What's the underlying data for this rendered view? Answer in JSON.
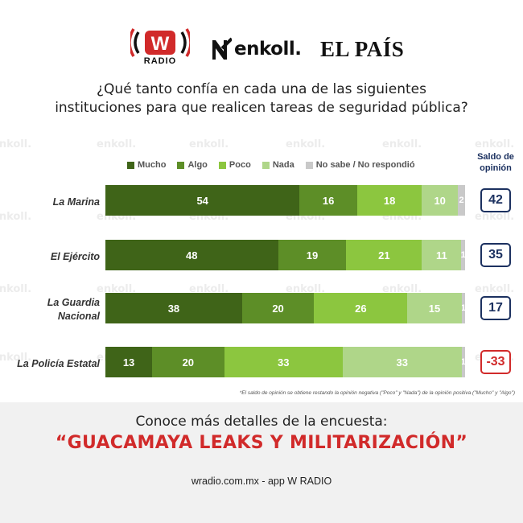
{
  "header": {
    "wradio_logo_letter": "W",
    "wradio_logo_text": "RADIO",
    "enkoll_logo_text": "enkoll.",
    "elpais_logo_text": "EL PAÍS"
  },
  "question": {
    "line1": "¿Qué tanto confía en cada una de las siguientes",
    "line2": "instituciones para que realicen tareas de seguridad pública?"
  },
  "watermark_text": "enkoll.",
  "chart_data": {
    "type": "bar",
    "orientation": "horizontal",
    "stacked": true,
    "categories": [
      "La Marina",
      "El Ejército",
      "La Guardia Nacional",
      "La Policía Estatal"
    ],
    "series": [
      {
        "name": "Mucho",
        "color": "#3f6418",
        "values": [
          54,
          48,
          38,
          13
        ]
      },
      {
        "name": "Algo",
        "color": "#5d8e27",
        "values": [
          16,
          19,
          20,
          20
        ]
      },
      {
        "name": "Poco",
        "color": "#8cc63f",
        "values": [
          18,
          21,
          26,
          33
        ]
      },
      {
        "name": "Nada",
        "color": "#afd689",
        "values": [
          10,
          11,
          15,
          33
        ]
      },
      {
        "name": "No sabe / No respondió",
        "color": "#c9c9c9",
        "values": [
          2,
          1,
          1,
          1
        ]
      }
    ],
    "saldo_title_line1": "Saldo de",
    "saldo_title_line2": "opinión",
    "saldo": [
      "42",
      "35",
      "17",
      "-33"
    ],
    "saldo_colors": [
      "#1c3160",
      "#1c3160",
      "#1c3160",
      "#d12a2a"
    ],
    "footnote": "*El saldo de opinión se obtiene restando la opinión negativa (\"Poco\" y \"Nada\") de la opinión positiva (\"Mucho\" y \"Algo\")",
    "legend_position": "top",
    "xlim": [
      0,
      100
    ],
    "grid": false
  },
  "banner": {
    "line1": "Conoce más detalles de la encuesta:",
    "line2": "“GUACAMAYA LEAKS Y MILITARIZACIÓN”",
    "line3": "wradio.com.mx - app W RADIO",
    "background": "#f1f1f1",
    "accent": "#d12a2a"
  }
}
